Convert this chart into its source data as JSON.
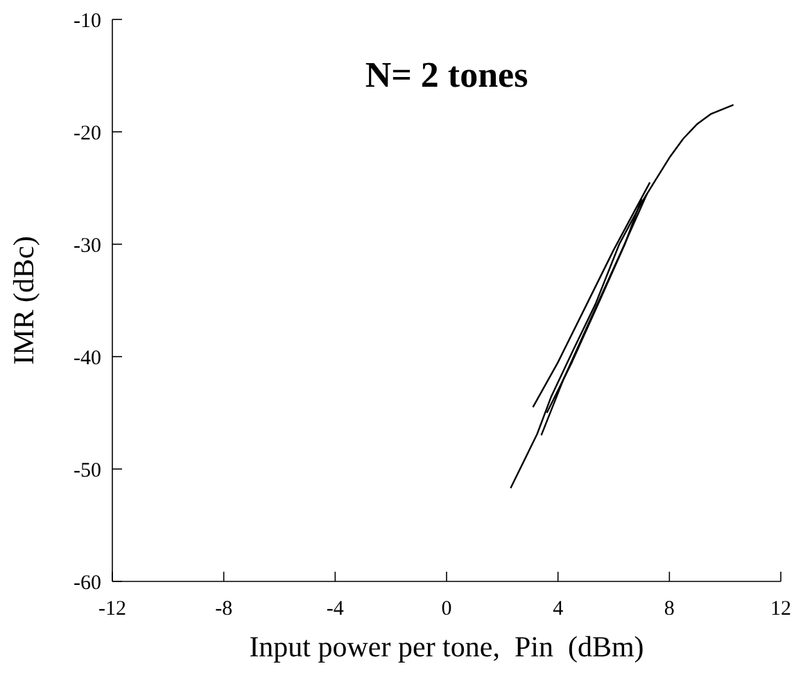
{
  "chart_data": {
    "type": "line",
    "title": "N= 2 tones",
    "xlabel": "Input power per tone,  Pin  (dBm)",
    "ylabel": "IMR (dBc)",
    "xlim": [
      -12,
      12
    ],
    "xticks": [
      -12,
      -8,
      -4,
      0,
      4,
      8,
      12
    ],
    "ylim": [
      -60,
      -10
    ],
    "yticks": [
      -60,
      -50,
      -40,
      -30,
      -20,
      -10
    ],
    "grid": false,
    "line_style": "solid",
    "series": [
      {
        "color": "#000000",
        "x": [
          2.3,
          3.25,
          3.75,
          4.55,
          5.35,
          6.2,
          7.0,
          7.5,
          8.0,
          8.5,
          9.0,
          9.5,
          10.3
        ],
        "values": [
          -51.7,
          -46.9,
          -43.6,
          -39.4,
          -35.3,
          -30,
          -26.3,
          -24.3,
          -22.3,
          -20.6,
          -19.3,
          -18.4,
          -17.6
        ]
      },
      {
        "color": "#000000",
        "x": [
          3.1,
          4.0,
          5.0,
          6.0,
          7.3
        ],
        "values": [
          -44.5,
          -40.5,
          -35.5,
          -30.5,
          -24.5
        ]
      },
      {
        "color": "#000000",
        "x": [
          3.4,
          4.2,
          5.2,
          6.3,
          7.2
        ],
        "values": [
          -47,
          -42,
          -36.5,
          -30.5,
          -25.5
        ]
      },
      {
        "color": "#000000",
        "x": [
          3.6,
          4.5,
          5.5,
          6.4,
          7.0
        ],
        "values": [
          -45,
          -40.5,
          -35,
          -30,
          -26
        ]
      }
    ]
  }
}
